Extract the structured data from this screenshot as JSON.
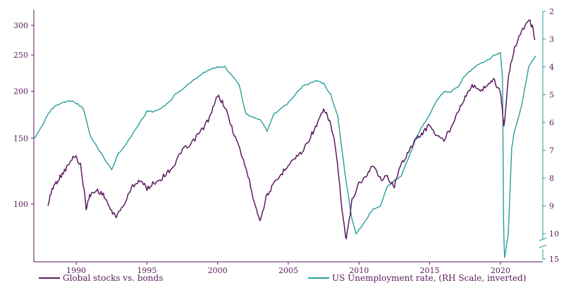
{
  "chart_data": {
    "type": "line",
    "x_range": [
      1987,
      2023
    ],
    "x_ticks": [
      "1990",
      "1995",
      "2000",
      "2005",
      "2010",
      "2015",
      "2020"
    ],
    "left_axis": {
      "scale": "log",
      "range": [
        80,
        320
      ],
      "ticks": [
        "100",
        "150",
        "200",
        "250",
        "300"
      ]
    },
    "right_axis": {
      "inverted": true,
      "range": [
        2,
        10
      ],
      "ticks": [
        "2",
        "3",
        "4",
        "5",
        "6",
        "7",
        "8",
        "9",
        "10"
      ],
      "break_tick": "15"
    },
    "series": [
      {
        "name": "Global stocks vs. bonds",
        "color": "#5a1a5e",
        "axis": "left",
        "points": [
          [
            1988.0,
            99
          ],
          [
            1988.3,
            110
          ],
          [
            1988.7,
            116
          ],
          [
            1989.0,
            120
          ],
          [
            1989.5,
            128
          ],
          [
            1989.9,
            135
          ],
          [
            1990.3,
            127
          ],
          [
            1990.7,
            98
          ],
          [
            1991.0,
            106
          ],
          [
            1991.5,
            109
          ],
          [
            1992.0,
            105
          ],
          [
            1992.5,
            95
          ],
          [
            1992.9,
            93
          ],
          [
            1993.5,
            102
          ],
          [
            1994.0,
            112
          ],
          [
            1994.5,
            116
          ],
          [
            1995.0,
            110
          ],
          [
            1995.5,
            114
          ],
          [
            1996.0,
            117
          ],
          [
            1996.5,
            122
          ],
          [
            1997.0,
            128
          ],
          [
            1997.5,
            140
          ],
          [
            1998.0,
            142
          ],
          [
            1998.6,
            153
          ],
          [
            1999.0,
            160
          ],
          [
            1999.5,
            172
          ],
          [
            2000.0,
            195
          ],
          [
            2000.4,
            186
          ],
          [
            2001.0,
            160
          ],
          [
            2001.5,
            142
          ],
          [
            2002.0,
            125
          ],
          [
            2002.5,
            105
          ],
          [
            2003.0,
            90
          ],
          [
            2003.5,
            106
          ],
          [
            2004.0,
            113
          ],
          [
            2004.5,
            120
          ],
          [
            2005.0,
            128
          ],
          [
            2005.5,
            133
          ],
          [
            2006.0,
            138
          ],
          [
            2006.5,
            150
          ],
          [
            2007.0,
            162
          ],
          [
            2007.5,
            178
          ],
          [
            2007.9,
            168
          ],
          [
            2008.3,
            145
          ],
          [
            2008.8,
            95
          ],
          [
            2009.1,
            80
          ],
          [
            2009.5,
            102
          ],
          [
            2010.0,
            114
          ],
          [
            2010.5,
            118
          ],
          [
            2011.0,
            128
          ],
          [
            2011.5,
            117
          ],
          [
            2012.0,
            118
          ],
          [
            2012.5,
            112
          ],
          [
            2013.0,
            128
          ],
          [
            2013.5,
            138
          ],
          [
            2014.0,
            148
          ],
          [
            2014.5,
            155
          ],
          [
            2015.0,
            163
          ],
          [
            2015.5,
            152
          ],
          [
            2016.0,
            148
          ],
          [
            2016.5,
            160
          ],
          [
            2017.0,
            178
          ],
          [
            2017.5,
            192
          ],
          [
            2018.0,
            208
          ],
          [
            2018.5,
            200
          ],
          [
            2019.0,
            207
          ],
          [
            2019.5,
            215
          ],
          [
            2020.0,
            200
          ],
          [
            2020.25,
            160
          ],
          [
            2020.6,
            222
          ],
          [
            2021.0,
            262
          ],
          [
            2021.5,
            290
          ],
          [
            2022.0,
            312
          ],
          [
            2022.3,
            295
          ],
          [
            2022.45,
            272
          ]
        ]
      },
      {
        "name": "US Unemployment rate, (RH Scale, inverted)",
        "color": "#2a9d9a",
        "axis": "right",
        "points": [
          [
            1987.0,
            6.6
          ],
          [
            1987.5,
            6.2
          ],
          [
            1988.0,
            5.7
          ],
          [
            1988.5,
            5.4
          ],
          [
            1989.0,
            5.3
          ],
          [
            1989.5,
            5.2
          ],
          [
            1990.0,
            5.3
          ],
          [
            1990.5,
            5.5
          ],
          [
            1991.0,
            6.5
          ],
          [
            1991.5,
            6.9
          ],
          [
            1992.0,
            7.3
          ],
          [
            1992.5,
            7.7
          ],
          [
            1993.0,
            7.1
          ],
          [
            1993.5,
            6.8
          ],
          [
            1994.0,
            6.4
          ],
          [
            1994.5,
            6.0
          ],
          [
            1995.0,
            5.6
          ],
          [
            1995.5,
            5.6
          ],
          [
            1996.0,
            5.5
          ],
          [
            1996.5,
            5.3
          ],
          [
            1997.0,
            5.0
          ],
          [
            1997.5,
            4.8
          ],
          [
            1998.0,
            4.6
          ],
          [
            1998.5,
            4.4
          ],
          [
            1999.0,
            4.2
          ],
          [
            1999.5,
            4.1
          ],
          [
            2000.0,
            4.0
          ],
          [
            2000.5,
            4.0
          ],
          [
            2001.0,
            4.3
          ],
          [
            2001.5,
            4.6
          ],
          [
            2002.0,
            5.7
          ],
          [
            2002.5,
            5.8
          ],
          [
            2003.0,
            5.9
          ],
          [
            2003.5,
            6.3
          ],
          [
            2004.0,
            5.7
          ],
          [
            2004.5,
            5.5
          ],
          [
            2005.0,
            5.3
          ],
          [
            2005.5,
            5.0
          ],
          [
            2006.0,
            4.7
          ],
          [
            2006.5,
            4.6
          ],
          [
            2007.0,
            4.5
          ],
          [
            2007.5,
            4.6
          ],
          [
            2008.0,
            5.0
          ],
          [
            2008.5,
            5.8
          ],
          [
            2009.0,
            7.8
          ],
          [
            2009.5,
            9.5
          ],
          [
            2009.8,
            10.0
          ],
          [
            2010.5,
            9.5
          ],
          [
            2011.0,
            9.1
          ],
          [
            2011.5,
            9.0
          ],
          [
            2012.0,
            8.3
          ],
          [
            2012.5,
            8.1
          ],
          [
            2013.0,
            7.9
          ],
          [
            2013.5,
            7.3
          ],
          [
            2014.0,
            6.6
          ],
          [
            2014.5,
            6.1
          ],
          [
            2015.0,
            5.7
          ],
          [
            2015.5,
            5.2
          ],
          [
            2016.0,
            4.9
          ],
          [
            2016.5,
            4.9
          ],
          [
            2017.0,
            4.7
          ],
          [
            2017.5,
            4.3
          ],
          [
            2018.0,
            4.1
          ],
          [
            2018.5,
            3.9
          ],
          [
            2019.0,
            3.8
          ],
          [
            2019.5,
            3.6
          ],
          [
            2020.0,
            3.5
          ],
          [
            2020.15,
            4.4
          ],
          [
            2020.3,
            14.7
          ],
          [
            2020.55,
            10.2
          ],
          [
            2020.8,
            6.9
          ],
          [
            2021.0,
            6.3
          ],
          [
            2021.5,
            5.4
          ],
          [
            2022.0,
            4.0
          ],
          [
            2022.5,
            3.6
          ]
        ]
      }
    ]
  },
  "legend": {
    "series_1": "Global stocks vs. bonds",
    "series_2": "US Unemployment rate, (RH Scale, inverted)"
  }
}
